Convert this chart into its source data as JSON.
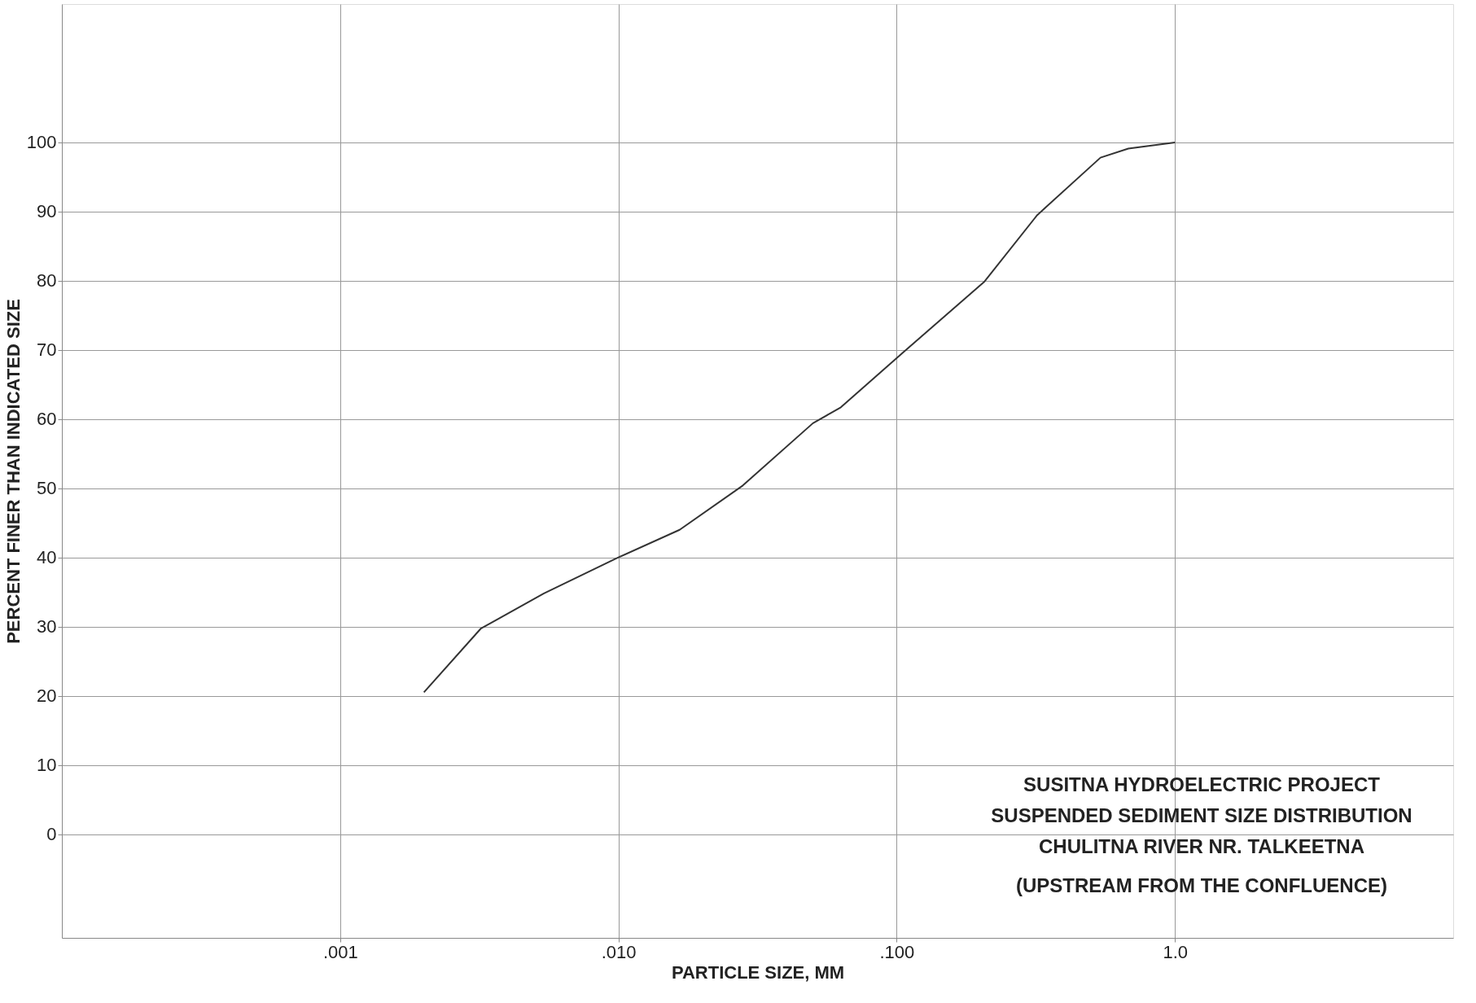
{
  "chart_data": {
    "type": "line",
    "xlabel": "PARTICLE SIZE, MM",
    "ylabel": "PERCENT FINER THAN INDICATED SIZE",
    "x": [
      0.002,
      0.0032,
      0.0054,
      0.01,
      0.0166,
      0.028,
      0.05,
      0.063,
      0.106,
      0.207,
      0.32,
      0.54,
      0.68,
      1.0
    ],
    "series": [
      {
        "color": "#333333",
        "values": [
          20.5,
          29.7,
          34.8,
          40,
          44,
          50.4,
          59.4,
          61.7,
          69.7,
          79.9,
          89.5,
          97.8,
          99.1,
          100
        ]
      }
    ],
    "log": "x",
    "xlim": [
      0.0001,
      10
    ],
    "xticks": [
      {
        "value": 0.001,
        "label": ".001"
      },
      {
        "value": 0.01,
        "label": ".010"
      },
      {
        "value": 0.1,
        "label": ".100"
      },
      {
        "value": 1,
        "label": "1.0"
      }
    ],
    "ylim": [
      -15,
      120
    ],
    "yticks": [
      0,
      10,
      20,
      30,
      40,
      50,
      60,
      70,
      80,
      90,
      100
    ],
    "grid": true,
    "marker": "none",
    "line_style": "solid",
    "annotations": [
      "SUSITNA HYDROELECTRIC PROJECT",
      "SUSPENDED SEDIMENT SIZE DISTRIBUTION",
      "CHULITNA RIVER NR. TALKEETNA",
      "(UPSTREAM FROM THE CONFLUENCE)"
    ]
  }
}
